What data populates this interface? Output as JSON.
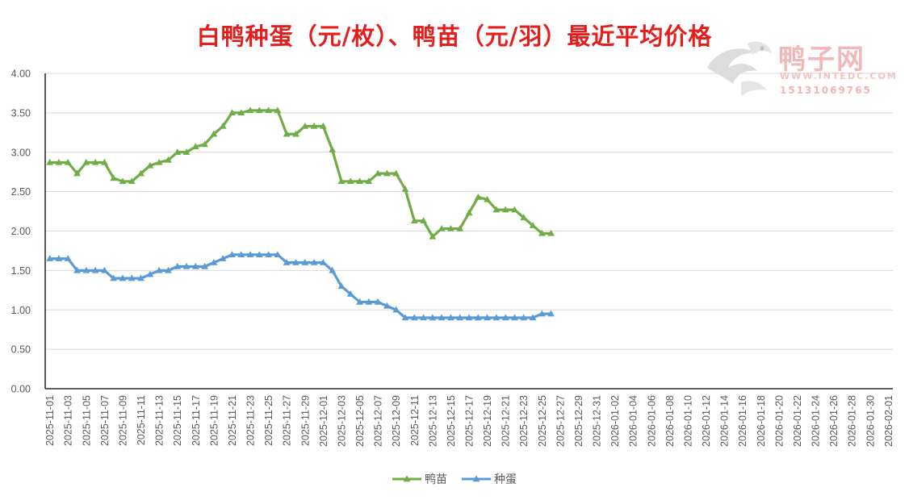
{
  "chart_data": {
    "type": "line",
    "title": "白鸭种蛋（元/枚）、鸭苗（元/羽）最近平均价格",
    "ylim": [
      0,
      4
    ],
    "y_ticks": [
      "0.00",
      "0.50",
      "1.00",
      "1.50",
      "2.00",
      "2.50",
      "3.00",
      "3.50",
      "4.00"
    ],
    "x_tick_labels": [
      "2025-11-01",
      "2025-11-03",
      "2025-11-05",
      "2025-11-07",
      "2025-11-09",
      "2025-11-11",
      "2025-11-13",
      "2025-11-15",
      "2025-11-17",
      "2025-11-19",
      "2025-11-21",
      "2025-11-23",
      "2025-11-25",
      "2025-11-27",
      "2025-11-29",
      "2025-12-01",
      "2025-12-03",
      "2025-12-05",
      "2025-12-07",
      "2025-12-09",
      "2025-12-11",
      "2025-12-13",
      "2025-12-15",
      "2025-12-17",
      "2025-12-19",
      "2025-12-21",
      "2025-12-23",
      "2025-12-25",
      "2025-12-27",
      "2025-12-29",
      "2025-12-31",
      "2026-01-02",
      "2026-01-04",
      "2026-01-06",
      "2026-01-08",
      "2026-01-10",
      "2026-01-12",
      "2026-01-14",
      "2026-01-16",
      "2026-01-18",
      "2026-01-20",
      "2026-01-22",
      "2026-01-24",
      "2026-01-26",
      "2026-01-28",
      "2026-01-30",
      "2026-02-01"
    ],
    "x_range": [
      "2025-11-01",
      "2026-02-01"
    ],
    "x": [
      "2025-11-01",
      "2025-11-02",
      "2025-11-03",
      "2025-11-04",
      "2025-11-05",
      "2025-11-06",
      "2025-11-07",
      "2025-11-08",
      "2025-11-09",
      "2025-11-10",
      "2025-11-11",
      "2025-11-12",
      "2025-11-13",
      "2025-11-14",
      "2025-11-15",
      "2025-11-16",
      "2025-11-17",
      "2025-11-18",
      "2025-11-19",
      "2025-11-20",
      "2025-11-21",
      "2025-11-22",
      "2025-11-23",
      "2025-11-24",
      "2025-11-25",
      "2025-11-26",
      "2025-11-27",
      "2025-11-28",
      "2025-11-29",
      "2025-11-30",
      "2025-12-01",
      "2025-12-02",
      "2025-12-03",
      "2025-12-04",
      "2025-12-05",
      "2025-12-06",
      "2025-12-07",
      "2025-12-08",
      "2025-12-09",
      "2025-12-10",
      "2025-12-11",
      "2025-12-12",
      "2025-12-13",
      "2025-12-14",
      "2025-12-15",
      "2025-12-16",
      "2025-12-17",
      "2025-12-18",
      "2025-12-19",
      "2025-12-20",
      "2025-12-21",
      "2025-12-22",
      "2025-12-23",
      "2025-12-24",
      "2025-12-25",
      "2025-12-26"
    ],
    "series": [
      {
        "name": "鸭苗",
        "color": "#70ad47",
        "values": [
          2.87,
          2.87,
          2.87,
          2.73,
          2.87,
          2.87,
          2.87,
          2.67,
          2.63,
          2.63,
          2.73,
          2.83,
          2.87,
          2.9,
          3.0,
          3.0,
          3.07,
          3.1,
          3.23,
          3.33,
          3.5,
          3.5,
          3.53,
          3.53,
          3.53,
          3.53,
          3.23,
          3.23,
          3.33,
          3.33,
          3.33,
          3.03,
          2.63,
          2.63,
          2.63,
          2.63,
          2.73,
          2.73,
          2.73,
          2.53,
          2.13,
          2.13,
          1.93,
          2.03,
          2.03,
          2.03,
          2.23,
          2.43,
          2.4,
          2.27,
          2.27,
          2.27,
          2.17,
          2.07,
          1.97,
          1.97
        ]
      },
      {
        "name": "种蛋",
        "color": "#5b9bd5",
        "values": [
          1.65,
          1.65,
          1.65,
          1.5,
          1.5,
          1.5,
          1.5,
          1.4,
          1.4,
          1.4,
          1.4,
          1.45,
          1.5,
          1.5,
          1.55,
          1.55,
          1.55,
          1.55,
          1.6,
          1.65,
          1.7,
          1.7,
          1.7,
          1.7,
          1.7,
          1.7,
          1.6,
          1.6,
          1.6,
          1.6,
          1.6,
          1.5,
          1.3,
          1.2,
          1.1,
          1.1,
          1.1,
          1.05,
          1.0,
          0.9,
          0.9,
          0.9,
          0.9,
          0.9,
          0.9,
          0.9,
          0.9,
          0.9,
          0.9,
          0.9,
          0.9,
          0.9,
          0.9,
          0.9,
          0.95,
          0.95
        ]
      }
    ],
    "legend_position": "bottom",
    "grid": true
  },
  "watermark": {
    "name": "鸭子网",
    "url": "WWW.INTEDC.COM",
    "phone": "15131069765"
  }
}
